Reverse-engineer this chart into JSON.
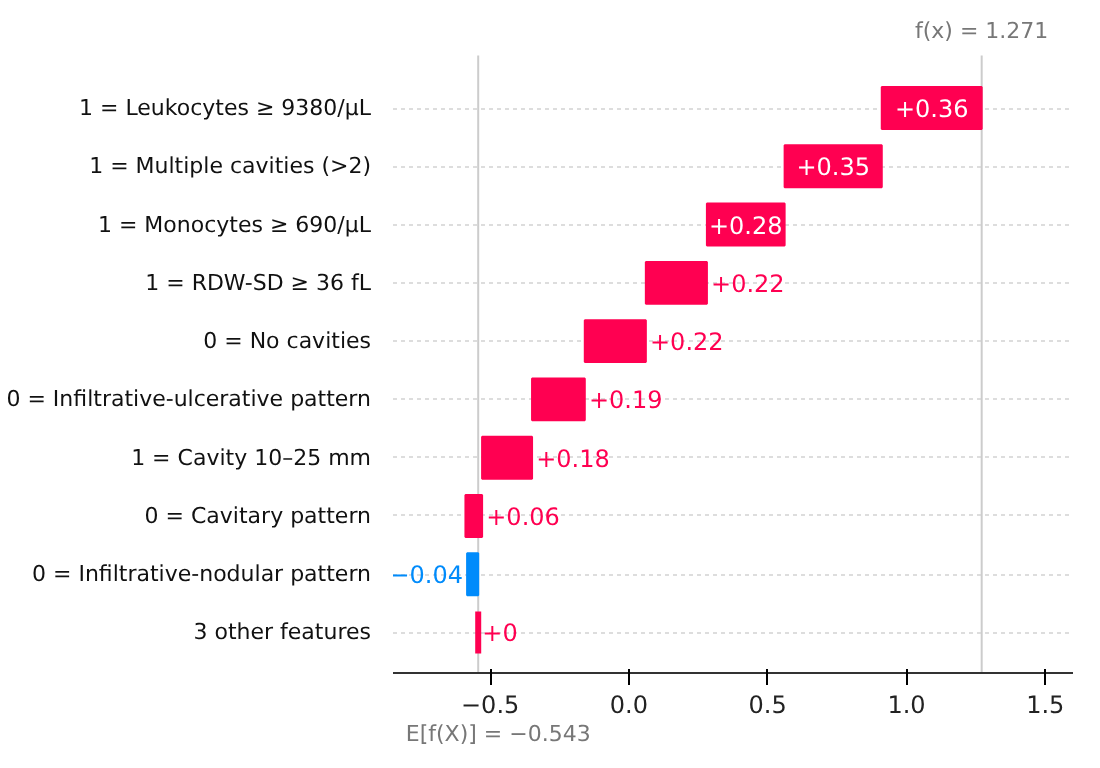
{
  "chart_data": {
    "type": "bar",
    "orientation": "horizontal",
    "categories": [
      "1 = Leukocytes ≥ 9380/μL",
      "1 = Multiple cavities (>2)",
      "1 = Monocytes ≥ 690/μL",
      "1 = RDW-SD ≥ 36 fL",
      "0 = No cavities",
      "0 = Infiltrative-ulcerative pattern",
      "1 = Cavity 10–25 mm",
      "0 = Cavitary pattern",
      "0 = Infiltrative-nodular pattern",
      "3 other features"
    ],
    "values": [
      0.36,
      0.35,
      0.28,
      0.22,
      0.22,
      0.19,
      0.18,
      0.06,
      -0.04,
      0
    ],
    "base": [
      0.911,
      0.561,
      0.281,
      0.061,
      -0.159,
      -0.349,
      -0.529,
      -0.589,
      -0.543,
      -0.543
    ],
    "colors": [
      "#ff0051",
      "#ff0051",
      "#ff0051",
      "#ff0051",
      "#ff0051",
      "#ff0051",
      "#ff0051",
      "#ff0051",
      "#008bfb",
      "#ff0051"
    ],
    "value_labels": [
      "+0.36",
      "+0.35",
      "+0.28",
      "+0.22",
      "+0.22",
      "+0.19",
      "+0.18",
      "+0.06",
      "−0.04",
      "+0"
    ],
    "xlim": [
      -0.85,
      1.6
    ],
    "xticks": [
      {
        "value": -0.5,
        "label": "−0.5"
      },
      {
        "value": 0,
        "label": "0.0"
      },
      {
        "value": 0.5,
        "label": "0.5"
      },
      {
        "value": 1.0,
        "label": "1.0"
      },
      {
        "value": 1.5,
        "label": "1.5"
      }
    ],
    "ref_lines": [
      {
        "axis": "x",
        "value": 1.271,
        "label": "f(x) = 1.271",
        "color": "#cccccc"
      },
      {
        "axis": "x",
        "value": -0.543,
        "label": "E[f(X)] = −0.543",
        "color": "#cccccc"
      }
    ],
    "grid": "y"
  }
}
